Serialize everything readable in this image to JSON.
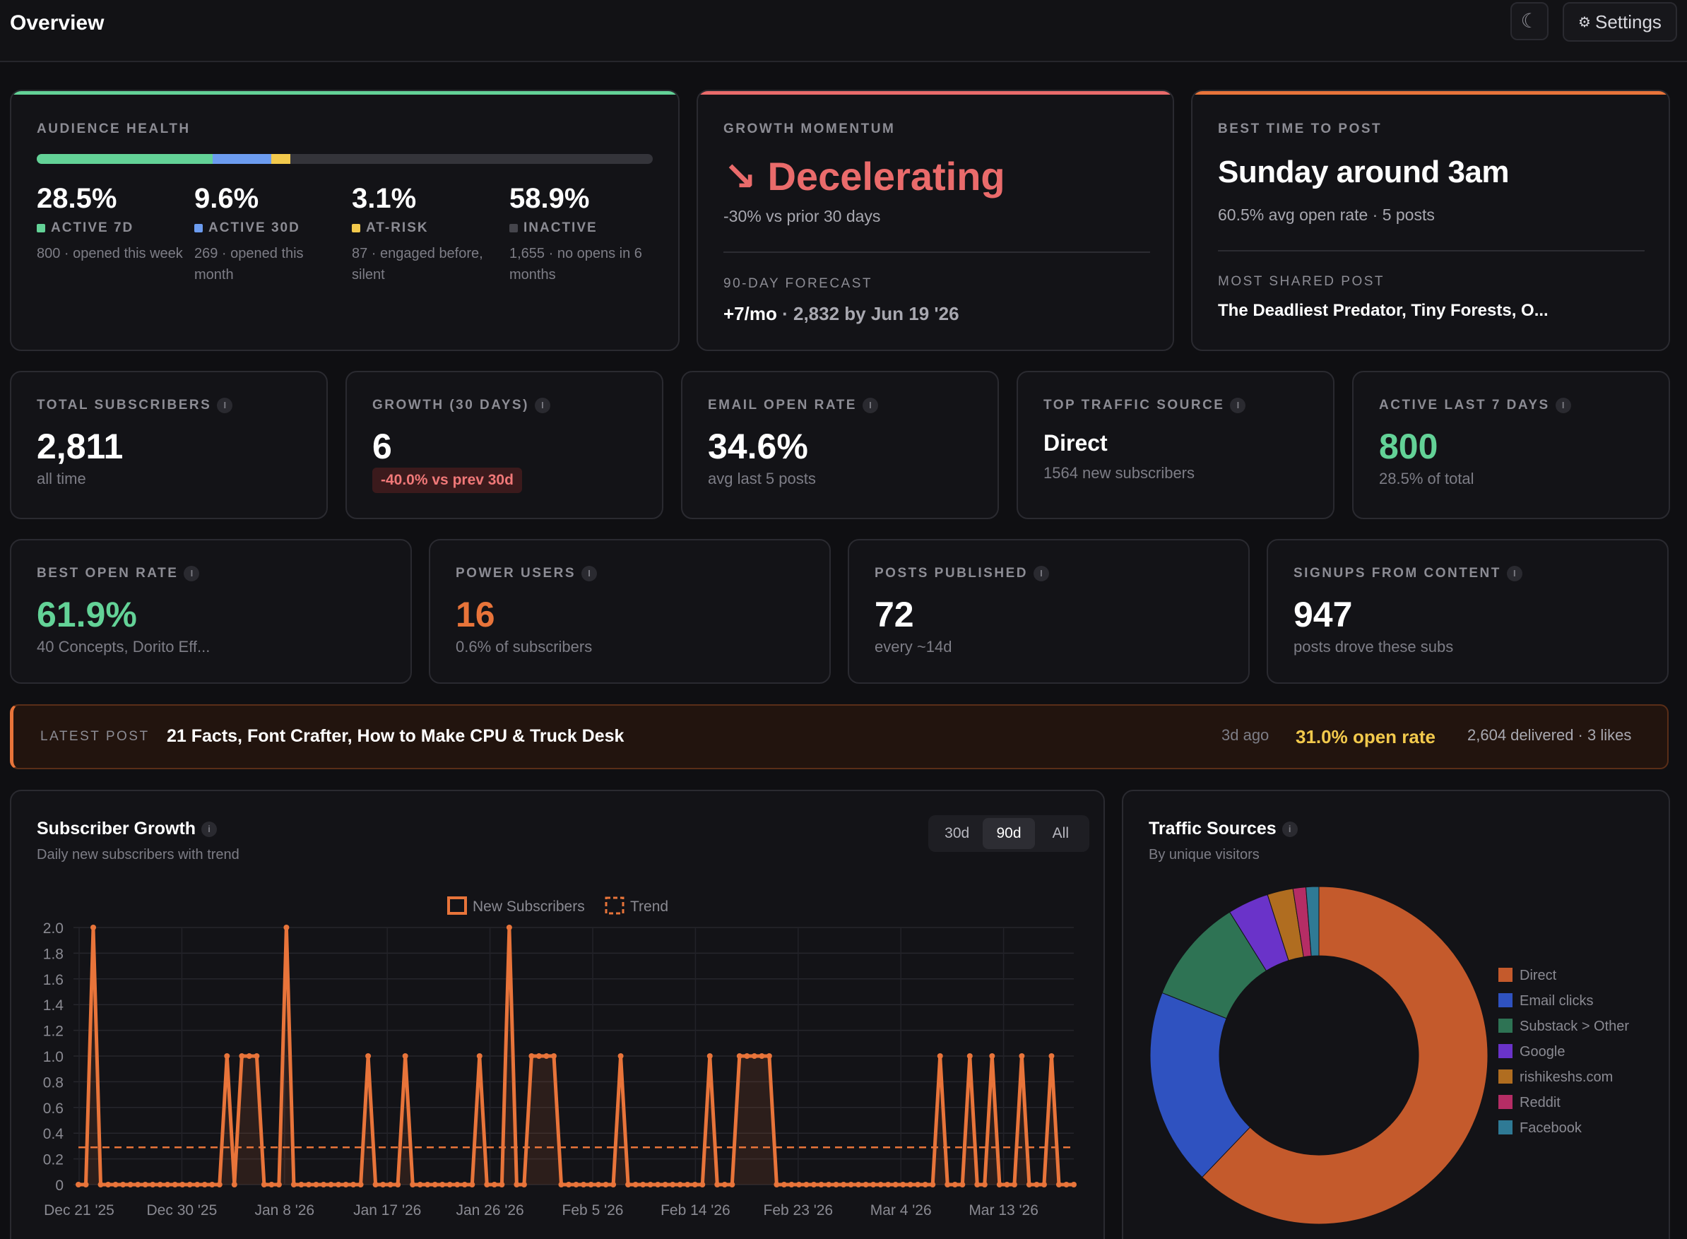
{
  "header": {
    "title": "Overview",
    "theme_icon": "☾",
    "settings_label": "Settings",
    "settings_icon": "⚙"
  },
  "colors": {
    "accent_orange": "#e8743a",
    "green": "#63d297",
    "blue": "#6c9cf0",
    "yellow": "#f2c94c",
    "red": "#ea6b6b"
  },
  "audience_health": {
    "label": "AUDIENCE HEALTH",
    "segments": [
      {
        "pct_value": 28.5,
        "pct": "28.5%",
        "tag": "ACTIVE 7D",
        "color": "#63d297",
        "desc": "800 · opened this week"
      },
      {
        "pct_value": 9.6,
        "pct": "9.6%",
        "tag": "ACTIVE 30D",
        "color": "#6c9cf0",
        "desc": "269 · opened this month"
      },
      {
        "pct_value": 3.1,
        "pct": "3.1%",
        "tag": "AT-RISK",
        "color": "#f2c94c",
        "desc": "87 · engaged before, silent"
      },
      {
        "pct_value": 58.9,
        "pct": "58.9%",
        "tag": "INACTIVE",
        "color": "#45454c",
        "desc": "1,655 · no opens in 6 months"
      }
    ]
  },
  "growth_momentum": {
    "label": "GROWTH MOMENTUM",
    "arrow": "↘",
    "value": "Decelerating",
    "sub": "-30% vs prior 30 days",
    "forecast_label": "90-DAY FORECAST",
    "forecast_rate": "+7/mo",
    "forecast_rest": " · 2,832 by Jun 19 '26"
  },
  "best_time": {
    "label": "BEST TIME TO POST",
    "value": "Sunday around 3am",
    "sub": "60.5% avg open rate · 5 posts",
    "most_shared_label": "MOST SHARED POST",
    "most_shared": "The Deadliest Predator, Tiny Forests, O..."
  },
  "metrics_row1": [
    {
      "label": "TOTAL SUBSCRIBERS",
      "value": "2,811",
      "sub": "all time"
    },
    {
      "label": "GROWTH (30 DAYS)",
      "value": "6",
      "badge": "-40.0% vs prev 30d"
    },
    {
      "label": "EMAIL OPEN RATE",
      "value": "34.6%",
      "sub": "avg last 5 posts"
    },
    {
      "label": "TOP TRAFFIC SOURCE",
      "value": "Direct",
      "sub": "1564 new subscribers"
    },
    {
      "label": "ACTIVE LAST 7 DAYS",
      "value": "800",
      "sub": "28.5% of total"
    }
  ],
  "metrics_row2": [
    {
      "label": "BEST OPEN RATE",
      "value": "61.9%",
      "sub": "40 Concepts, Dorito Eff..."
    },
    {
      "label": "POWER USERS",
      "value": "16",
      "sub": "0.6% of subscribers"
    },
    {
      "label": "POSTS PUBLISHED",
      "value": "72",
      "sub": "every ~14d"
    },
    {
      "label": "SIGNUPS FROM CONTENT",
      "value": "947",
      "sub": "posts drove these subs"
    }
  ],
  "latest_post": {
    "label": "LATEST POST",
    "title": "21 Facts, Font Crafter, How to Make CPU & Truck Desk",
    "age": "3d ago",
    "open_rate": "31.0% open rate",
    "stats": "2,604 delivered · 3 likes"
  },
  "subscriber_growth": {
    "title": "Subscriber Growth",
    "subtitle": "Daily new subscribers with trend",
    "ranges": [
      "30d",
      "90d",
      "All"
    ],
    "active_range": "90d"
  },
  "traffic_sources": {
    "title": "Traffic Sources",
    "subtitle": "By unique visitors"
  },
  "chart_data": [
    {
      "type": "line",
      "legend": [
        "New Subscribers",
        "Trend"
      ],
      "x_tick_labels": [
        "Dec 21 '25",
        "Dec 30 '25",
        "Jan 8 '26",
        "Jan 17 '26",
        "Jan 26 '26",
        "Feb 5 '26",
        "Feb 14 '26",
        "Feb 23 '26",
        "Mar 4 '26",
        "Mar 13 '26"
      ],
      "y_tick_labels": [
        "0",
        "0.2",
        "0.4",
        "0.6",
        "0.8",
        "1.0",
        "1.2",
        "1.4",
        "1.6",
        "1.8",
        "2.0"
      ],
      "ylim": [
        0,
        2
      ],
      "grid": true,
      "legend_position": "top",
      "x_start": "Dec 21 '25",
      "x_end": "Mar 21 '26",
      "series": [
        {
          "name": "New Subscribers",
          "color": "#e8743a",
          "values": [
            0,
            0,
            2,
            0,
            0,
            0,
            0,
            0,
            0,
            0,
            0,
            0,
            0,
            0,
            0,
            0,
            0,
            0,
            0,
            0,
            1,
            0,
            1,
            1,
            1,
            0,
            0,
            0,
            2,
            0,
            0,
            0,
            0,
            0,
            0,
            0,
            0,
            0,
            0,
            1,
            0,
            0,
            0,
            0,
            1,
            0,
            0,
            0,
            0,
            0,
            0,
            0,
            0,
            0,
            1,
            0,
            0,
            0,
            2,
            0,
            0,
            1,
            1,
            1,
            1,
            0,
            0,
            0,
            0,
            0,
            0,
            0,
            0,
            1,
            0,
            0,
            0,
            0,
            0,
            0,
            0,
            0,
            0,
            0,
            0,
            1,
            0,
            0,
            0,
            1,
            1,
            1,
            1,
            1,
            0,
            0,
            0,
            0,
            0,
            0,
            0,
            0,
            0,
            0,
            0,
            0,
            0,
            0,
            0,
            0,
            0,
            0,
            0,
            0,
            0,
            0,
            1,
            0,
            0,
            0,
            1,
            0,
            0,
            1,
            0,
            0,
            0,
            1,
            0,
            0,
            0,
            1,
            0,
            0,
            0
          ]
        },
        {
          "name": "Trend",
          "color": "#e8743a",
          "dashed": true,
          "values": [
            0.29,
            0.29
          ]
        }
      ]
    },
    {
      "type": "pie",
      "donut": true,
      "legend_position": "right",
      "labels": [
        "Direct",
        "Email clicks",
        "Substack > Other",
        "Google",
        "rishikeshs.com",
        "Reddit",
        "Facebook"
      ],
      "values": [
        1564,
        475,
        254,
        99,
        62,
        31,
        31
      ],
      "colors": [
        "#c45a2c",
        "#2f52c0",
        "#2e7354",
        "#6a33c9",
        "#b06d20",
        "#b52d65",
        "#2f7a95"
      ]
    }
  ]
}
